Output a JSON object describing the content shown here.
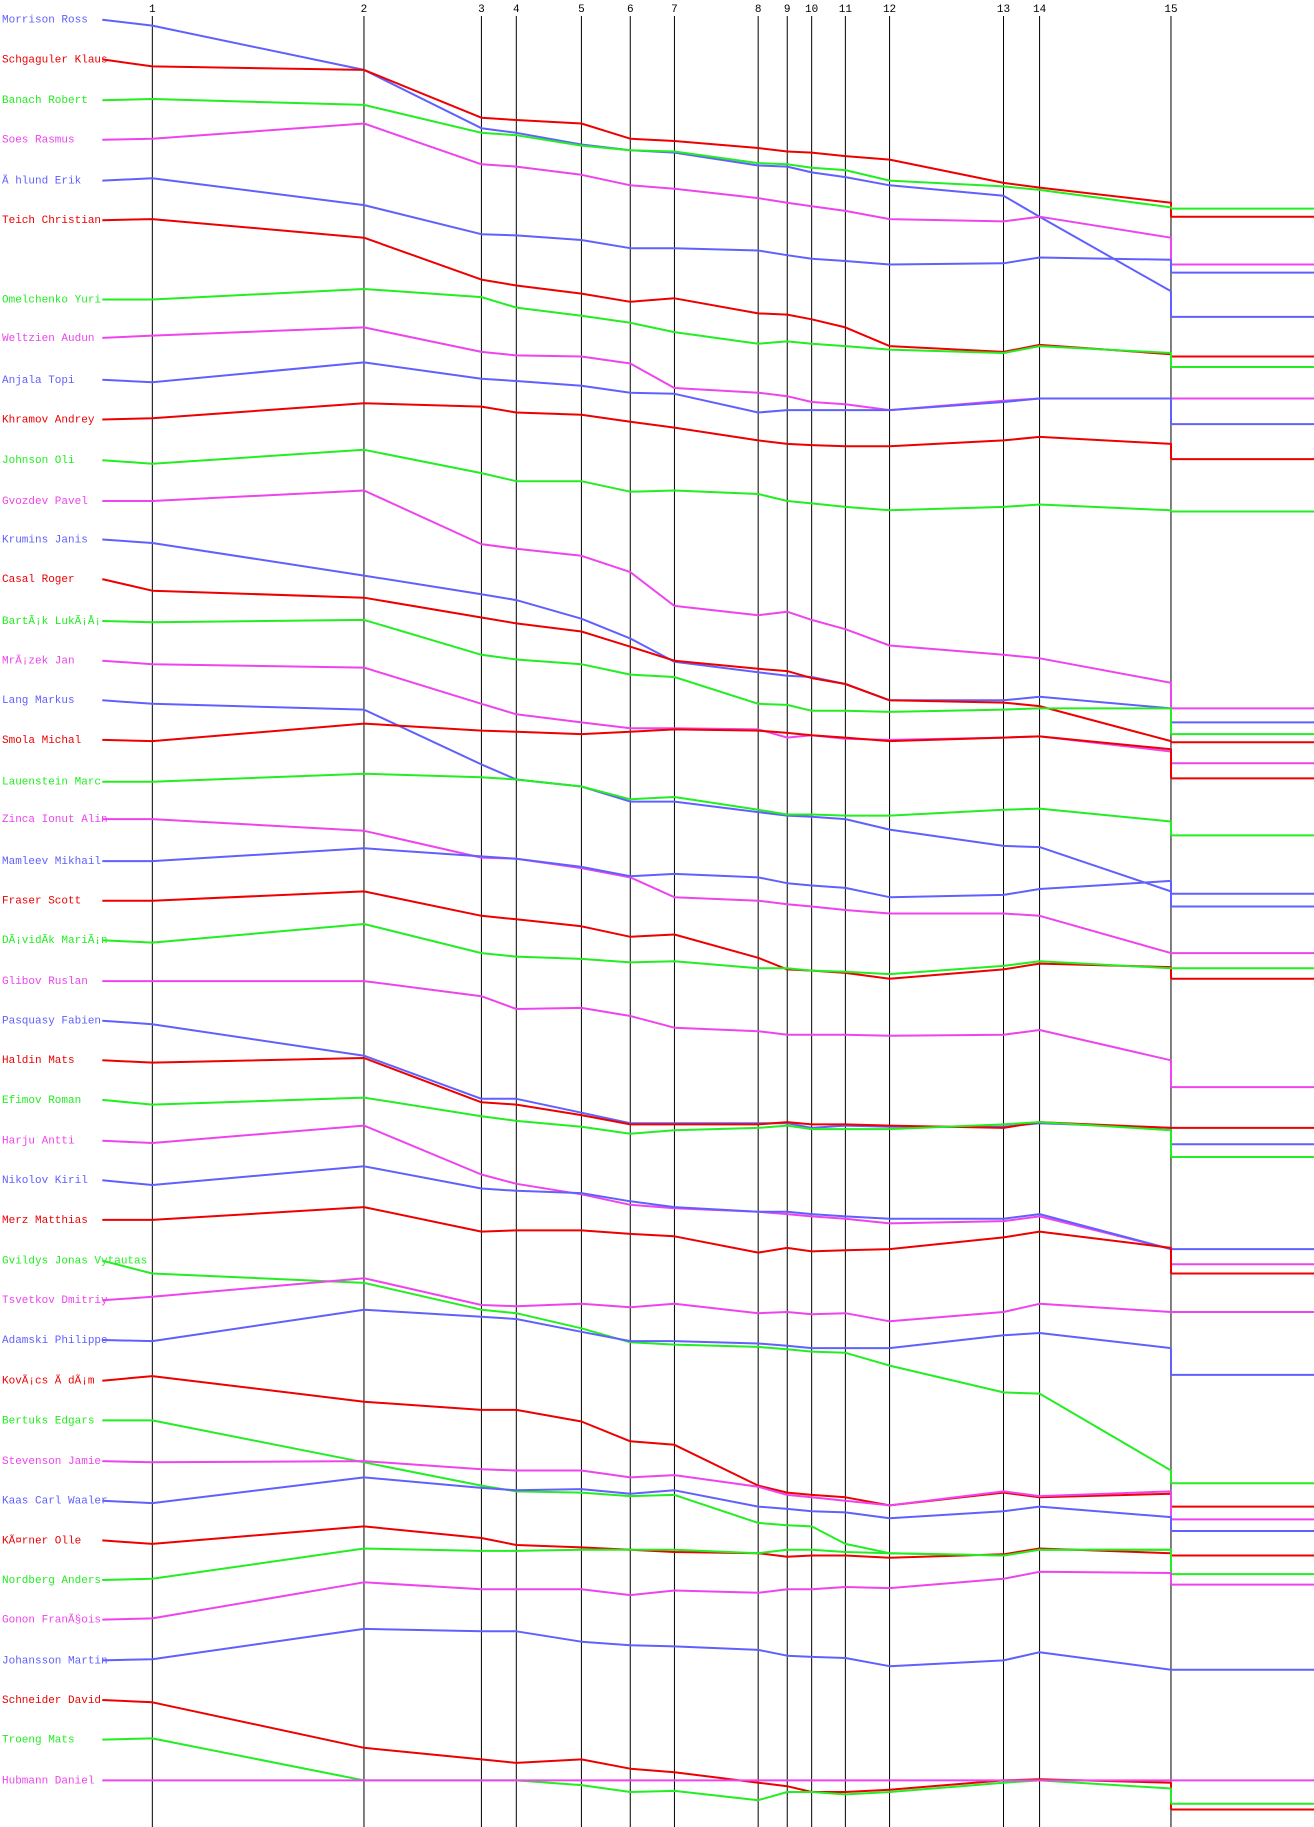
{
  "chart_data": {
    "type": "line",
    "x": [
      88,
      131,
      313,
      414,
      444,
      500,
      542,
      580,
      652,
      677,
      698,
      727,
      765,
      863,
      894,
      1007,
      1007
    ],
    "xlim": [
      0,
      1130
    ],
    "ylim": [
      0,
      1568
    ],
    "xticks": [
      {
        "value": 131,
        "label": "1"
      },
      {
        "value": 313,
        "label": "2"
      },
      {
        "value": 414,
        "label": "3"
      },
      {
        "value": 444,
        "label": "4"
      },
      {
        "value": 500,
        "label": "5"
      },
      {
        "value": 542,
        "label": "6"
      },
      {
        "value": 580,
        "label": "7"
      },
      {
        "value": 652,
        "label": "8"
      },
      {
        "value": 677,
        "label": "9"
      },
      {
        "value": 698,
        "label": "10"
      },
      {
        "value": 727,
        "label": "11"
      },
      {
        "value": 765,
        "label": "12"
      },
      {
        "value": 863,
        "label": "13"
      },
      {
        "value": 894,
        "label": "14"
      },
      {
        "value": 1007,
        "label": "15"
      }
    ],
    "series": [
      {
        "name": "Morrison Ross",
        "color": "#6060ff",
        "values": [
          17,
          22,
          60,
          110,
          114,
          124,
          129,
          131,
          142,
          143,
          148,
          152,
          159,
          168,
          186,
          250,
          272
        ]
      },
      {
        "name": "Schgaguler Klaus",
        "color": "#ee0000",
        "values": [
          51,
          57,
          60,
          101,
          103,
          106,
          119,
          121,
          127,
          130,
          131,
          134,
          137,
          157,
          161,
          174,
          186
        ]
      },
      {
        "name": "Banach Robert",
        "color": "#22ee22",
        "values": [
          86,
          85,
          90,
          114,
          116,
          125,
          129,
          130,
          140,
          141,
          144,
          146,
          155,
          160,
          163,
          178,
          179
        ]
      },
      {
        "name": "Soes Rasmus",
        "color": "#ee44ee",
        "values": [
          120,
          119,
          106,
          141,
          143,
          150,
          159,
          162,
          170,
          174,
          177,
          181,
          188,
          190,
          186,
          204,
          227
        ]
      },
      {
        "name": "Ã hlund Erik",
        "color": "#6060ff",
        "values": [
          155,
          153,
          176,
          201,
          202,
          206,
          213,
          213,
          215,
          219,
          222,
          224,
          227,
          226,
          221,
          223,
          234
        ]
      },
      {
        "name": "Teich Christian",
        "color": "#ee0000",
        "values": [
          189,
          188,
          204,
          240,
          245,
          252,
          259,
          256,
          269,
          270,
          274,
          281,
          297,
          302,
          296,
          304,
          306
        ]
      },
      {
        "name": "Omelchenko Yuri",
        "color": "#22ee22",
        "values": [
          257,
          257,
          248,
          255,
          264,
          271,
          277,
          285,
          295,
          293,
          295,
          297,
          300,
          303,
          297,
          303,
          315
        ]
      },
      {
        "name": "Weltzien Audun",
        "color": "#ee44ee",
        "values": [
          290,
          288,
          281,
          302,
          305,
          306,
          312,
          333,
          337,
          340,
          345,
          347,
          352,
          344,
          342,
          342,
          342
        ]
      },
      {
        "name": "Anjala Topi",
        "color": "#6060ff",
        "values": [
          326,
          328,
          311,
          325,
          327,
          331,
          337,
          338,
          354,
          352,
          352,
          352,
          352,
          345,
          342,
          342,
          364
        ]
      },
      {
        "name": "Khramov Andrey",
        "color": "#ee0000",
        "values": [
          360,
          359,
          346,
          349,
          354,
          356,
          362,
          367,
          378,
          381,
          382,
          383,
          383,
          378,
          375,
          381,
          394
        ]
      },
      {
        "name": "Johnson Oli",
        "color": "#22ee22",
        "values": [
          395,
          398,
          386,
          406,
          413,
          413,
          422,
          421,
          424,
          430,
          432,
          435,
          438,
          435,
          433,
          438,
          439
        ]
      },
      {
        "name": "Gvozdev Pavel",
        "color": "#ee44ee",
        "values": [
          430,
          430,
          421,
          467,
          471,
          477,
          491,
          520,
          528,
          525,
          532,
          540,
          554,
          562,
          565,
          586,
          608
        ]
      },
      {
        "name": "Krumins Janis",
        "color": "#6060ff",
        "values": [
          463,
          466,
          494,
          510,
          515,
          531,
          548,
          568,
          577,
          580,
          581,
          587,
          601,
          601,
          598,
          608,
          620
        ]
      },
      {
        "name": "Casal Roger",
        "color": "#ee0000",
        "values": [
          497,
          507,
          513,
          530,
          535,
          542,
          555,
          567,
          574,
          576,
          582,
          587,
          601,
          603,
          606,
          636,
          637
        ]
      },
      {
        "name": "BartÃ¡k LukÃ¡Å¡",
        "color": "#22ee22",
        "values": [
          533,
          534,
          532,
          562,
          566,
          570,
          579,
          581,
          604,
          605,
          610,
          610,
          611,
          609,
          608,
          608,
          630
        ]
      },
      {
        "name": "MrÃ¡zek Jan",
        "color": "#ee44ee",
        "values": [
          567,
          570,
          573,
          604,
          613,
          620,
          625,
          625,
          626,
          633,
          631,
          634,
          635,
          633,
          632,
          645,
          655
        ]
      },
      {
        "name": "Lang Markus",
        "color": "#6060ff",
        "values": [
          601,
          604,
          609,
          656,
          669,
          675,
          688,
          688,
          697,
          700,
          701,
          703,
          712,
          726,
          727,
          765,
          778
        ]
      },
      {
        "name": "Smola Michal",
        "color": "#ee0000",
        "values": [
          635,
          636,
          621,
          627,
          628,
          630,
          628,
          626,
          627,
          629,
          631,
          633,
          636,
          633,
          632,
          643,
          668
        ]
      },
      {
        "name": "Lauenstein Marc",
        "color": "#22ee22",
        "values": [
          671,
          671,
          664,
          667,
          669,
          675,
          686,
          684,
          695,
          699,
          699,
          700,
          700,
          695,
          694,
          705,
          717
        ]
      },
      {
        "name": "Zinca Ionut Alin",
        "color": "#ee44ee",
        "values": [
          703,
          703,
          713,
          736,
          737,
          745,
          753,
          770,
          773,
          776,
          778,
          781,
          784,
          784,
          786,
          818,
          818
        ]
      },
      {
        "name": "Mamleev Mikhail",
        "color": "#6060ff",
        "values": [
          739,
          739,
          728,
          735,
          737,
          744,
          752,
          750,
          753,
          758,
          760,
          762,
          770,
          768,
          763,
          756,
          767
        ]
      },
      {
        "name": "Fraser Scott",
        "color": "#ee0000",
        "values": [
          773,
          773,
          765,
          786,
          789,
          795,
          804,
          802,
          822,
          832,
          833,
          835,
          840,
          832,
          827,
          830,
          840
        ]
      },
      {
        "name": "DÃ¡vidÃ­k MariÃ¡n",
        "color": "#22ee22",
        "values": [
          807,
          809,
          793,
          818,
          821,
          823,
          826,
          825,
          831,
          831,
          833,
          834,
          836,
          829,
          825,
          831,
          831
        ]
      },
      {
        "name": "Glibov Ruslan",
        "color": "#ee44ee",
        "values": [
          842,
          842,
          842,
          855,
          866,
          865,
          872,
          882,
          885,
          888,
          888,
          888,
          889,
          888,
          884,
          910,
          933
        ]
      },
      {
        "name": "Pasquasy Fabien",
        "color": "#6060ff",
        "values": [
          876,
          879,
          906,
          943,
          943,
          955,
          964,
          964,
          964,
          964,
          968,
          966,
          967,
          967,
          964,
          968,
          982
        ]
      },
      {
        "name": "Haldin Mats",
        "color": "#ee0000",
        "values": [
          910,
          912,
          908,
          946,
          948,
          957,
          965,
          965,
          965,
          963,
          965,
          965,
          966,
          968,
          963,
          968,
          968
        ]
      },
      {
        "name": "Efimov Roman",
        "color": "#22ee22",
        "values": [
          944,
          948,
          942,
          958,
          962,
          967,
          973,
          970,
          968,
          966,
          969,
          969,
          969,
          965,
          963,
          970,
          993
        ]
      },
      {
        "name": "Harju Antti",
        "color": "#ee44ee",
        "values": [
          979,
          981,
          966,
          1008,
          1016,
          1025,
          1034,
          1037,
          1040,
          1042,
          1044,
          1046,
          1050,
          1048,
          1044,
          1072,
          1085
        ]
      },
      {
        "name": "Nikolov Kiril",
        "color": "#6060ff",
        "values": [
          1013,
          1017,
          1001,
          1020,
          1022,
          1024,
          1031,
          1036,
          1040,
          1040,
          1042,
          1044,
          1046,
          1046,
          1042,
          1072,
          1072
        ]
      },
      {
        "name": "Merz Matthias",
        "color": "#ee0000",
        "values": [
          1047,
          1047,
          1036,
          1057,
          1056,
          1056,
          1059,
          1061,
          1075,
          1071,
          1074,
          1073,
          1072,
          1062,
          1057,
          1071,
          1093
        ]
      },
      {
        "name": "Gvildys Jonas Vytautas",
        "color": "#22ee22",
        "values": [
          1082,
          1093,
          1101,
          1124,
          1127,
          1140,
          1152,
          1154,
          1156,
          1158,
          1160,
          1161,
          1172,
          1195,
          1196,
          1262,
          1273
        ]
      },
      {
        "name": "Tsvetkov Dmitriy",
        "color": "#ee44ee",
        "values": [
          1116,
          1113,
          1097,
          1120,
          1121,
          1119,
          1122,
          1119,
          1127,
          1126,
          1128,
          1127,
          1134,
          1126,
          1119,
          1126,
          1126
        ]
      },
      {
        "name": "Adamski Philippe",
        "color": "#6060ff",
        "values": [
          1150,
          1151,
          1124,
          1130,
          1132,
          1143,
          1151,
          1151,
          1153,
          1155,
          1157,
          1157,
          1157,
          1146,
          1144,
          1157,
          1180
        ]
      },
      {
        "name": "KovÃ¡cs Ã dÃ¡m",
        "color": "#ee0000",
        "values": [
          1185,
          1181,
          1203,
          1210,
          1210,
          1220,
          1237,
          1240,
          1275,
          1281,
          1283,
          1285,
          1292,
          1281,
          1285,
          1282,
          1293
        ]
      },
      {
        "name": "Bertuks Edgars",
        "color": "#22ee22",
        "values": [
          1219,
          1219,
          1255,
          1275,
          1280,
          1281,
          1284,
          1283,
          1307,
          1309,
          1310,
          1325,
          1333,
          1335,
          1330,
          1330,
          1335
        ]
      },
      {
        "name": "Stevenson Jamie",
        "color": "#ee44ee",
        "values": [
          1254,
          1255,
          1254,
          1261,
          1262,
          1262,
          1268,
          1266,
          1276,
          1283,
          1285,
          1288,
          1292,
          1280,
          1284,
          1280,
          1304
        ]
      },
      {
        "name": "Kaas Carl Waaler",
        "color": "#6060ff",
        "values": [
          1288,
          1290,
          1268,
          1277,
          1279,
          1278,
          1282,
          1279,
          1293,
          1295,
          1297,
          1298,
          1303,
          1297,
          1293,
          1302,
          1314
        ]
      },
      {
        "name": "KÃ¤rner Olle",
        "color": "#ee0000",
        "values": [
          1322,
          1325,
          1310,
          1320,
          1326,
          1328,
          1330,
          1332,
          1333,
          1336,
          1335,
          1335,
          1337,
          1334,
          1329,
          1333,
          1335
        ]
      },
      {
        "name": "Nordberg Anders",
        "color": "#22ee22",
        "values": [
          1356,
          1355,
          1329,
          1331,
          1331,
          1330,
          1330,
          1330,
          1333,
          1330,
          1330,
          1332,
          1333,
          1335,
          1330,
          1330,
          1351
        ]
      },
      {
        "name": "Gonon FranÃ§ois",
        "color": "#ee44ee",
        "values": [
          1390,
          1389,
          1358,
          1364,
          1364,
          1364,
          1369,
          1365,
          1367,
          1364,
          1364,
          1362,
          1363,
          1355,
          1349,
          1350,
          1360
        ]
      },
      {
        "name": "Johansson Martin",
        "color": "#6060ff",
        "values": [
          1425,
          1424,
          1398,
          1400,
          1400,
          1409,
          1412,
          1413,
          1416,
          1421,
          1422,
          1423,
          1430,
          1425,
          1418,
          1433,
          1433
        ]
      },
      {
        "name": "Schneider David",
        "color": "#ee0000",
        "values": [
          1459,
          1461,
          1500,
          1510,
          1513,
          1510,
          1518,
          1521,
          1530,
          1533,
          1538,
          1538,
          1536,
          1528,
          1527,
          1530,
          1553
        ]
      },
      {
        "name": "Troeng Mats",
        "color": "#22ee22",
        "values": [
          1493,
          1492,
          1528,
          1528,
          1528,
          1532,
          1538,
          1537,
          1545,
          1538,
          1538,
          1540,
          1538,
          1530,
          1528,
          1535,
          1548
        ]
      },
      {
        "name": "Hubmann Daniel",
        "color": "#ee44ee",
        "values": [
          1528,
          1528,
          1528,
          1528,
          1528,
          1528,
          1528,
          1528,
          1528,
          1528,
          1528,
          1528,
          1528,
          1528,
          1528,
          1528,
          1528
        ]
      }
    ]
  }
}
